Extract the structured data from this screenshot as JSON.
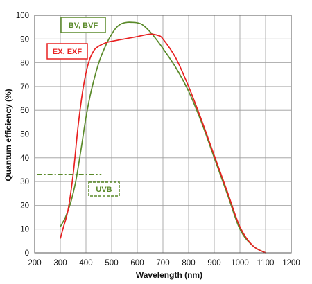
{
  "chart_data": {
    "type": "line",
    "xlabel": "Wavelength (nm)",
    "ylabel": "Quantum efficiency (%)",
    "xlim": [
      200,
      1200
    ],
    "ylim": [
      0,
      100
    ],
    "x_ticks": [
      200,
      300,
      400,
      500,
      600,
      700,
      800,
      900,
      1000,
      1100,
      1200
    ],
    "y_ticks": [
      0,
      10,
      20,
      30,
      40,
      50,
      60,
      70,
      80,
      90,
      100
    ],
    "grid": true,
    "series": [
      {
        "name": "BV, BVF",
        "color": "#5a8a2a",
        "style": "solid",
        "x": [
          300,
          320,
          340,
          360,
          380,
          400,
          420,
          450,
          480,
          500,
          520,
          540,
          560,
          580,
          600,
          620,
          650,
          680,
          700,
          750,
          800,
          850,
          900,
          950,
          1000,
          1050,
          1100
        ],
        "y": [
          11,
          15,
          21,
          30,
          43,
          57,
          68,
          80,
          88,
          92,
          95,
          96.5,
          97,
          97,
          96.8,
          96,
          93,
          89,
          86,
          78,
          68,
          55,
          40,
          25,
          10,
          3,
          0
        ]
      },
      {
        "name": "EX, EXF",
        "color": "#e82020",
        "style": "solid",
        "x": [
          300,
          310,
          330,
          350,
          370,
          390,
          410,
          430,
          450,
          480,
          500,
          550,
          600,
          650,
          680,
          700,
          750,
          800,
          850,
          900,
          950,
          1000,
          1050,
          1100
        ],
        "y": [
          6,
          10,
          18,
          33,
          54,
          70,
          80,
          85,
          87,
          88.5,
          89,
          90,
          91,
          92,
          91.5,
          90,
          82,
          70,
          56,
          41,
          26,
          11,
          3,
          0
        ]
      },
      {
        "name": "UVB",
        "color": "#5a8a2a",
        "style": "dashdot",
        "x": [
          210,
          460
        ],
        "y": [
          33,
          33
        ]
      }
    ]
  }
}
